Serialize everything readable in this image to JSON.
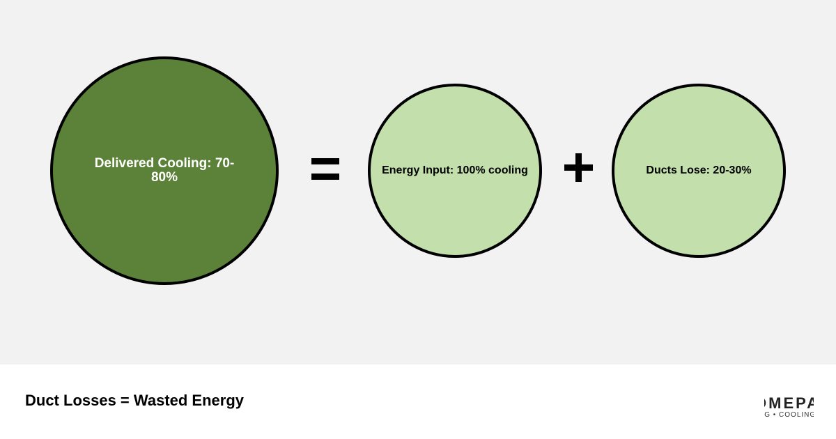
{
  "diagram": {
    "nodes": [
      {
        "label": "Delivered Cooling: 70-80%"
      },
      {
        "label": "Energy Input: 100% cooling"
      },
      {
        "label": "Ducts Lose: 20-30%"
      }
    ]
  },
  "footer": {
    "title": "Duct Losses = Wasted Energy",
    "logo": {
      "name": "OMEPA",
      "tagline": "NG • COOLING"
    }
  }
}
